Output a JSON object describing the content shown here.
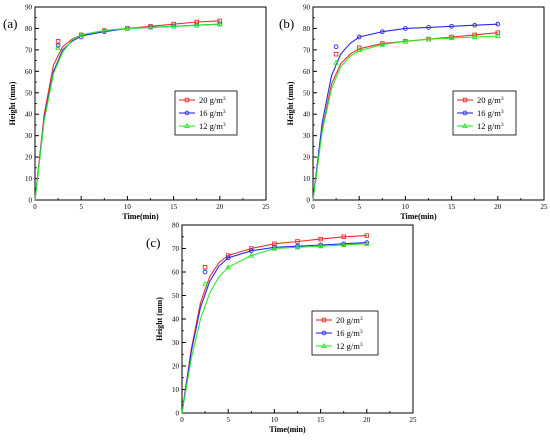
{
  "chart_data": [
    {
      "panel_label": "(a)",
      "type": "line",
      "xlabel": "Time(min)",
      "ylabel": "Height (mm)",
      "xlim": [
        0,
        25
      ],
      "ylim": [
        0,
        90
      ],
      "xticks": [
        "0",
        "5",
        "10",
        "15",
        "20",
        "25"
      ],
      "yticks": [
        "0",
        "10",
        "20",
        "30",
        "40",
        "50",
        "60",
        "70",
        "80",
        "90"
      ],
      "grid": false,
      "legend_position": "center-right",
      "series": [
        {
          "name": "20 g/m",
          "color": "#e8302a",
          "marker": "square",
          "points": [
            [
              2.5,
              74
            ],
            [
              5,
              77
            ],
            [
              7.5,
              79
            ],
            [
              10,
              80
            ],
            [
              12.5,
              81
            ],
            [
              15,
              82
            ],
            [
              17.5,
              83
            ],
            [
              20,
              83.5
            ]
          ],
          "curve": [
            [
              0,
              0
            ],
            [
              1,
              40
            ],
            [
              2,
              63
            ],
            [
              3,
              71.5
            ],
            [
              4,
              75
            ],
            [
              5,
              77
            ],
            [
              7.5,
              79
            ],
            [
              10,
              80
            ],
            [
              12.5,
              81
            ],
            [
              15,
              82
            ],
            [
              17.5,
              83
            ],
            [
              20,
              83.5
            ]
          ]
        },
        {
          "name": "16 g/m",
          "color": "#2a2ae8",
          "marker": "circle",
          "points": [
            [
              2.5,
              72
            ],
            [
              5,
              76
            ],
            [
              7.5,
              78.5
            ],
            [
              10,
              80
            ],
            [
              12.5,
              80.5
            ],
            [
              15,
              81
            ],
            [
              17.5,
              81.5
            ],
            [
              20,
              82
            ]
          ],
          "curve": [
            [
              0,
              0
            ],
            [
              1,
              38
            ],
            [
              2,
              60
            ],
            [
              3,
              70
            ],
            [
              4,
              74
            ],
            [
              5,
              76.5
            ],
            [
              7.5,
              78.5
            ],
            [
              10,
              80
            ],
            [
              12.5,
              80.5
            ],
            [
              15,
              81
            ],
            [
              17.5,
              81.5
            ],
            [
              20,
              82
            ]
          ]
        },
        {
          "name": "12 g/m",
          "color": "#2ae82a",
          "marker": "triangle",
          "points": [
            [
              2.5,
              71
            ],
            [
              5,
              77
            ],
            [
              7.5,
              79
            ],
            [
              10,
              80
            ],
            [
              12.5,
              80.5
            ],
            [
              15,
              81
            ],
            [
              17.5,
              81.5
            ],
            [
              20,
              82
            ]
          ],
          "curve": [
            [
              0,
              0
            ],
            [
              1,
              37
            ],
            [
              2,
              59
            ],
            [
              3,
              69
            ],
            [
              4,
              74.5
            ],
            [
              5,
              77
            ],
            [
              7.5,
              79
            ],
            [
              10,
              80
            ],
            [
              12.5,
              80.5
            ],
            [
              15,
              81
            ],
            [
              17.5,
              81.5
            ],
            [
              20,
              82
            ]
          ]
        }
      ]
    },
    {
      "panel_label": "(b)",
      "type": "line",
      "xlabel": "Time(min)",
      "ylabel": "Height (mm)",
      "xlim": [
        0,
        25
      ],
      "ylim": [
        0,
        90
      ],
      "xticks": [
        "0",
        "5",
        "10",
        "15",
        "20",
        "25"
      ],
      "yticks": [
        "0",
        "10",
        "20",
        "30",
        "40",
        "50",
        "60",
        "70",
        "80",
        "90"
      ],
      "grid": false,
      "legend_position": "center-right",
      "series": [
        {
          "name": "20 g/m",
          "color": "#e8302a",
          "marker": "square",
          "points": [
            [
              2.5,
              68
            ],
            [
              5,
              71
            ],
            [
              7.5,
              73
            ],
            [
              10,
              74
            ],
            [
              12.5,
              75
            ],
            [
              15,
              76
            ],
            [
              17.5,
              77
            ],
            [
              20,
              78
            ]
          ],
          "curve": [
            [
              0,
              0
            ],
            [
              1,
              33
            ],
            [
              2,
              54
            ],
            [
              3,
              63.5
            ],
            [
              4,
              68
            ],
            [
              5,
              70.5
            ],
            [
              7.5,
              73
            ],
            [
              10,
              74
            ],
            [
              12.5,
              75
            ],
            [
              15,
              76
            ],
            [
              17.5,
              77
            ],
            [
              20,
              78
            ]
          ]
        },
        {
          "name": "16 g/m",
          "color": "#2a2ae8",
          "marker": "circle",
          "points": [
            [
              2.5,
              71.5
            ],
            [
              5,
              76
            ],
            [
              7.5,
              78.5
            ],
            [
              10,
              80
            ],
            [
              12.5,
              80.5
            ],
            [
              15,
              81
            ],
            [
              17.5,
              81.5
            ],
            [
              20,
              82
            ]
          ],
          "curve": [
            [
              0,
              0
            ],
            [
              1,
              36
            ],
            [
              2,
              58
            ],
            [
              3,
              68
            ],
            [
              4,
              73
            ],
            [
              5,
              76
            ],
            [
              7.5,
              78.5
            ],
            [
              10,
              80
            ],
            [
              12.5,
              80.5
            ],
            [
              15,
              81
            ],
            [
              17.5,
              81.5
            ],
            [
              20,
              82
            ]
          ]
        },
        {
          "name": "12 g/m",
          "color": "#2ae82a",
          "marker": "triangle",
          "points": [
            [
              2.5,
              64
            ],
            [
              5,
              70
            ],
            [
              7.5,
              72.5
            ],
            [
              10,
              74
            ],
            [
              12.5,
              75
            ],
            [
              15,
              75.5
            ],
            [
              17.5,
              76
            ],
            [
              20,
              76.5
            ]
          ],
          "curve": [
            [
              0,
              0
            ],
            [
              1,
              32
            ],
            [
              2,
              52
            ],
            [
              3,
              62
            ],
            [
              4,
              67
            ],
            [
              5,
              69.5
            ],
            [
              7.5,
              72.5
            ],
            [
              10,
              74
            ],
            [
              12.5,
              75
            ],
            [
              15,
              75.5
            ],
            [
              17.5,
              76
            ],
            [
              20,
              76.5
            ]
          ]
        }
      ]
    },
    {
      "panel_label": "(c)",
      "type": "line",
      "xlabel": "Time(min)",
      "ylabel": "Height (mm)",
      "xlim": [
        0,
        25
      ],
      "ylim": [
        0,
        80
      ],
      "xticks": [
        "0",
        "5",
        "10",
        "15",
        "20",
        "25"
      ],
      "yticks": [
        "0",
        "10",
        "20",
        "30",
        "40",
        "50",
        "60",
        "70",
        "80"
      ],
      "grid": false,
      "legend_position": "center-right",
      "series": [
        {
          "name": "20 g/m",
          "color": "#e8302a",
          "marker": "square",
          "points": [
            [
              2.5,
              62
            ],
            [
              5,
              67
            ],
            [
              7.5,
              70
            ],
            [
              10,
              72
            ],
            [
              12.5,
              73
            ],
            [
              15,
              74
            ],
            [
              17.5,
              75
            ],
            [
              20,
              75.5
            ]
          ],
          "curve": [
            [
              0,
              0
            ],
            [
              1,
              27
            ],
            [
              2,
              47
            ],
            [
              3,
              58
            ],
            [
              4,
              64
            ],
            [
              5,
              67
            ],
            [
              7.5,
              70
            ],
            [
              10,
              72
            ],
            [
              12.5,
              73
            ],
            [
              15,
              74
            ],
            [
              17.5,
              75
            ],
            [
              20,
              75.5
            ]
          ]
        },
        {
          "name": "16 g/m",
          "color": "#2a2ae8",
          "marker": "circle",
          "points": [
            [
              2.5,
              60
            ],
            [
              5,
              66
            ],
            [
              7.5,
              69
            ],
            [
              10,
              70.5
            ],
            [
              12.5,
              71
            ],
            [
              15,
              71.5
            ],
            [
              17.5,
              72
            ],
            [
              20,
              72.5
            ]
          ],
          "curve": [
            [
              0,
              0
            ],
            [
              1,
              26
            ],
            [
              2,
              45
            ],
            [
              3,
              56
            ],
            [
              4,
              62.5
            ],
            [
              5,
              66
            ],
            [
              7.5,
              69
            ],
            [
              10,
              70.5
            ],
            [
              12.5,
              71
            ],
            [
              15,
              71.5
            ],
            [
              17.5,
              72
            ],
            [
              20,
              72.5
            ]
          ]
        },
        {
          "name": "12 g/m",
          "color": "#2ae82a",
          "marker": "triangle",
          "points": [
            [
              2.5,
              55
            ],
            [
              5,
              62
            ],
            [
              7.5,
              67
            ],
            [
              10,
              70
            ],
            [
              12.5,
              70.5
            ],
            [
              15,
              71
            ],
            [
              17.5,
              71.5
            ],
            [
              20,
              72
            ]
          ],
          "curve": [
            [
              0,
              0
            ],
            [
              1,
              23
            ],
            [
              2,
              40
            ],
            [
              3,
              51
            ],
            [
              4,
              58
            ],
            [
              5,
              62
            ],
            [
              7.5,
              67
            ],
            [
              10,
              70
            ],
            [
              12.5,
              70.5
            ],
            [
              15,
              71
            ],
            [
              17.5,
              71.5
            ],
            [
              20,
              72
            ]
          ]
        }
      ]
    }
  ],
  "legend_superscript": "3"
}
